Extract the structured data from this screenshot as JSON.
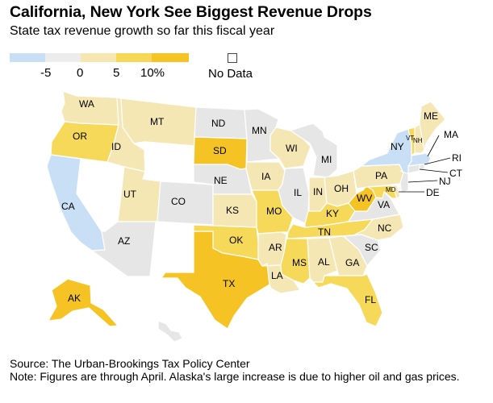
{
  "header": {
    "title": "California, New York See Biggest Revenue Drops",
    "subtitle": "State tax revenue growth so far this fiscal year"
  },
  "legend": {
    "ticks": [
      "-5",
      "0",
      "5",
      "10%"
    ],
    "no_data_label": "No Data",
    "colors": [
      "#c9dff5",
      "#ececec",
      "#f6e7b2",
      "#f7d856",
      "#f5c424"
    ]
  },
  "palette": {
    "decline": "#c9dff5",
    "flat": "#e6e6e6",
    "low": "#f4e7b4",
    "mid": "#f7d95a",
    "high": "#f5c424",
    "no_data": "#ffffff"
  },
  "states": {
    "WA": {
      "label": "WA",
      "bucket": "low"
    },
    "OR": {
      "label": "OR",
      "bucket": "mid"
    },
    "CA": {
      "label": "CA",
      "bucket": "decline"
    },
    "ID": {
      "label": "ID",
      "bucket": "low"
    },
    "NV": {
      "label": "",
      "bucket": "no_data"
    },
    "MT": {
      "label": "MT",
      "bucket": "low"
    },
    "WY": {
      "label": "",
      "bucket": "no_data"
    },
    "UT": {
      "label": "UT",
      "bucket": "low"
    },
    "AZ": {
      "label": "AZ",
      "bucket": "flat"
    },
    "CO": {
      "label": "CO",
      "bucket": "flat"
    },
    "NM": {
      "label": "",
      "bucket": "no_data"
    },
    "ND": {
      "label": "ND",
      "bucket": "flat"
    },
    "SD": {
      "label": "SD",
      "bucket": "high"
    },
    "NE": {
      "label": "NE",
      "bucket": "flat"
    },
    "KS": {
      "label": "KS",
      "bucket": "low"
    },
    "OK": {
      "label": "OK",
      "bucket": "mid"
    },
    "TX": {
      "label": "TX",
      "bucket": "high"
    },
    "MN": {
      "label": "MN",
      "bucket": "flat"
    },
    "IA": {
      "label": "IA",
      "bucket": "low"
    },
    "MO": {
      "label": "MO",
      "bucket": "mid"
    },
    "AR": {
      "label": "AR",
      "bucket": "low"
    },
    "LA": {
      "label": "LA",
      "bucket": "low"
    },
    "WI": {
      "label": "WI",
      "bucket": "low"
    },
    "IL": {
      "label": "IL",
      "bucket": "flat"
    },
    "MI": {
      "label": "MI",
      "bucket": "flat"
    },
    "IN": {
      "label": "IN",
      "bucket": "low"
    },
    "OH": {
      "label": "OH",
      "bucket": "low"
    },
    "KY": {
      "label": "KY",
      "bucket": "mid"
    },
    "TN": {
      "label": "TN",
      "bucket": "mid"
    },
    "MS": {
      "label": "MS",
      "bucket": "mid"
    },
    "AL": {
      "label": "AL",
      "bucket": "low"
    },
    "GA": {
      "label": "GA",
      "bucket": "low"
    },
    "FL": {
      "label": "FL",
      "bucket": "mid"
    },
    "SC": {
      "label": "SC",
      "bucket": "flat"
    },
    "NC": {
      "label": "NC",
      "bucket": "low"
    },
    "VA": {
      "label": "VA",
      "bucket": "flat"
    },
    "WV": {
      "label": "WV",
      "bucket": "high"
    },
    "PA": {
      "label": "PA",
      "bucket": "low"
    },
    "NY": {
      "label": "NY",
      "bucket": "decline"
    },
    "MD": {
      "label": "MD",
      "bucket": "mid"
    },
    "DE": {
      "label": "DE",
      "bucket": "low"
    },
    "NJ": {
      "label": "NJ",
      "bucket": "flat"
    },
    "CT": {
      "label": "CT",
      "bucket": "flat"
    },
    "RI": {
      "label": "RI",
      "bucket": "flat"
    },
    "MA": {
      "label": "MA",
      "bucket": "decline"
    },
    "VT": {
      "label": "VT",
      "bucket": "mid"
    },
    "NH": {
      "label": "NH",
      "bucket": "low"
    },
    "ME": {
      "label": "ME",
      "bucket": "low"
    },
    "AK": {
      "label": "AK",
      "bucket": "high"
    },
    "HI": {
      "label": "",
      "bucket": "flat"
    }
  },
  "footer": {
    "source": "Source: The Urban-Brookings Tax Policy Center",
    "note": "Note: Figures are through April. Alaska's large increase is due to higher oil and gas prices."
  }
}
